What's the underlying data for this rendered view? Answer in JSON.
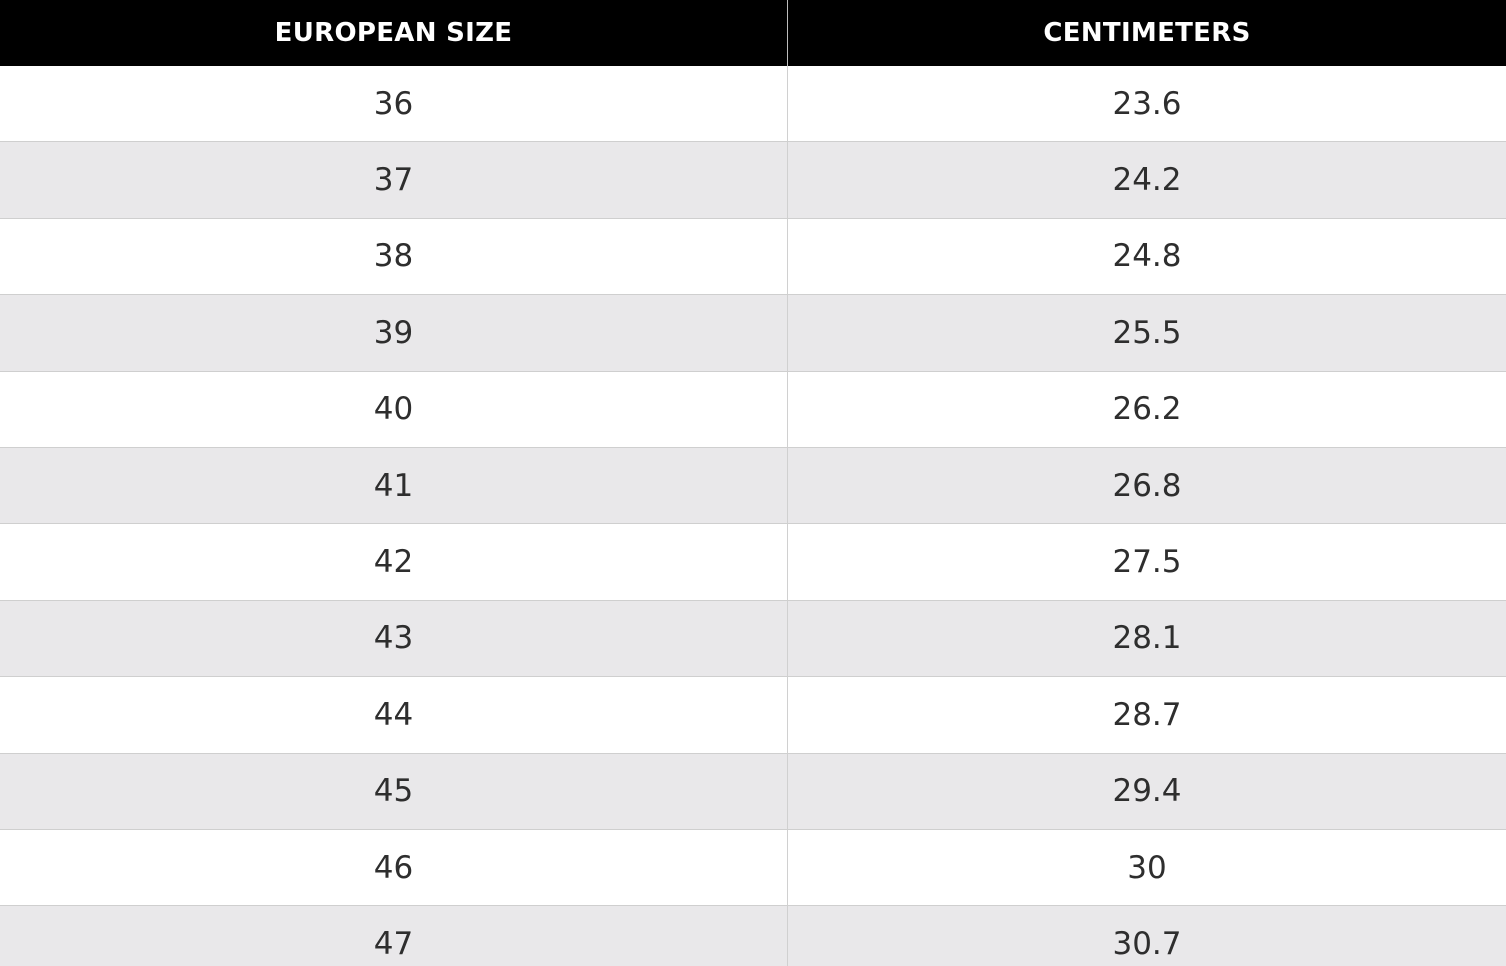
{
  "table": {
    "header": [
      "EUROPEAN SIZE",
      "CENTIMETERS"
    ],
    "rows": [
      [
        36,
        23.6
      ],
      [
        37,
        24.2
      ],
      [
        38,
        24.8
      ],
      [
        39,
        25.5
      ],
      [
        40,
        26.2
      ],
      [
        41,
        26.8
      ],
      [
        42,
        27.5
      ],
      [
        43,
        28.1
      ],
      [
        44,
        28.7
      ],
      [
        45,
        29.4
      ],
      [
        46,
        30
      ],
      [
        47,
        30.7
      ]
    ]
  }
}
